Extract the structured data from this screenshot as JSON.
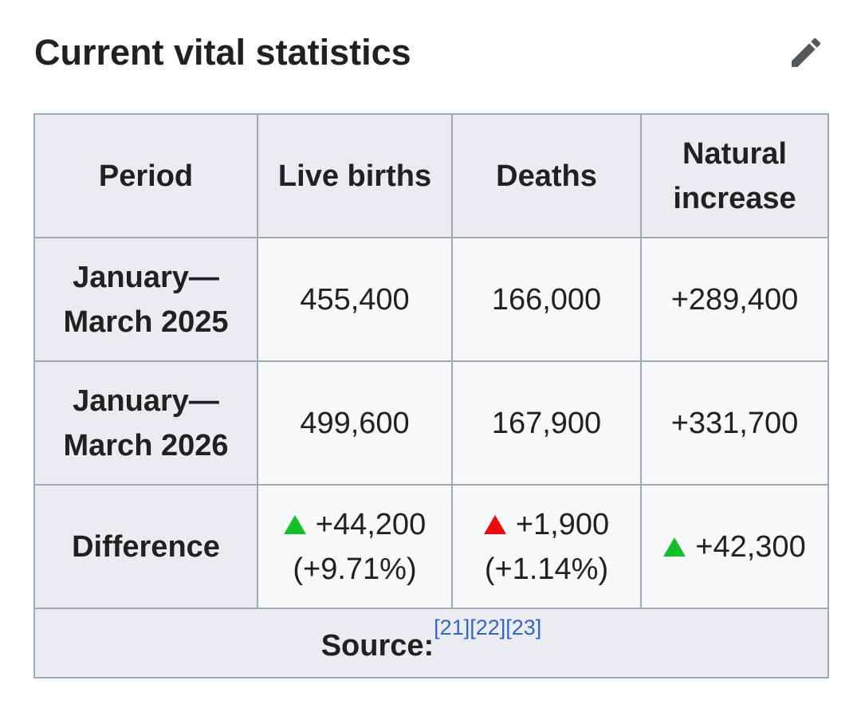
{
  "section": {
    "title": "Current vital statistics",
    "edit_icon": "pencil-icon"
  },
  "table": {
    "headers": [
      "Period",
      "Live births",
      "Deaths",
      "Natural increase"
    ],
    "rows": [
      {
        "period": "January— March 2025",
        "live_births": "455,400",
        "deaths": "166,000",
        "natural_increase": "+289,400"
      },
      {
        "period": "January— March 2026",
        "live_births": "499,600",
        "deaths": "167,900",
        "natural_increase": "+331,700"
      }
    ],
    "difference": {
      "label": "Difference",
      "live_births": {
        "value": "+44,200",
        "percent": "(+9.71%)",
        "trend": "up",
        "color": "#14c12a"
      },
      "deaths": {
        "value": "+1,900",
        "percent": "(+1.14%)",
        "trend": "up",
        "color": "#ee0b0b"
      },
      "natural_increase": {
        "value": "+42,300",
        "trend": "up",
        "color": "#14c12a"
      }
    },
    "source": {
      "label": "Source:",
      "refs": [
        "[21]",
        "[22]",
        "[23]"
      ]
    }
  },
  "colors": {
    "header_bg": "#eaecf0",
    "cell_bg": "#f8f9fa",
    "border": "#a2a9b1",
    "link": "#3366cc",
    "up_green": "#14c12a",
    "up_red": "#ee0b0b"
  }
}
